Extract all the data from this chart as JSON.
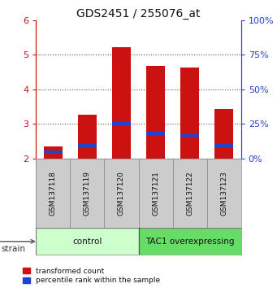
{
  "title": "GDS2451 / 255076_at",
  "samples": [
    "GSM137118",
    "GSM137119",
    "GSM137120",
    "GSM137121",
    "GSM137122",
    "GSM137123"
  ],
  "red_values": [
    2.35,
    3.27,
    5.22,
    4.67,
    4.62,
    3.43
  ],
  "blue_values": [
    2.18,
    2.38,
    3.02,
    2.72,
    2.68,
    2.38
  ],
  "ymin": 2.0,
  "ymax": 6.0,
  "yticks": [
    2,
    3,
    4,
    5,
    6
  ],
  "right_yticks": [
    0,
    25,
    50,
    75,
    100
  ],
  "right_ylabels": [
    "0%",
    "25%",
    "50%",
    "75%",
    "100%"
  ],
  "bar_color": "#cc1111",
  "blue_color": "#2244cc",
  "bar_width": 0.55,
  "groups": [
    {
      "label": "control",
      "indices": [
        0,
        1,
        2
      ],
      "color": "#ccffcc"
    },
    {
      "label": "TAC1 overexpressing",
      "indices": [
        3,
        4,
        5
      ],
      "color": "#66dd66"
    }
  ],
  "legend_red": "transformed count",
  "legend_blue": "percentile rank within the sample",
  "strain_label": "strain",
  "title_fontsize": 10,
  "tick_fontsize": 8,
  "label_fontsize": 6.5,
  "group_fontsize": 7.5,
  "background_color": "#ffffff"
}
